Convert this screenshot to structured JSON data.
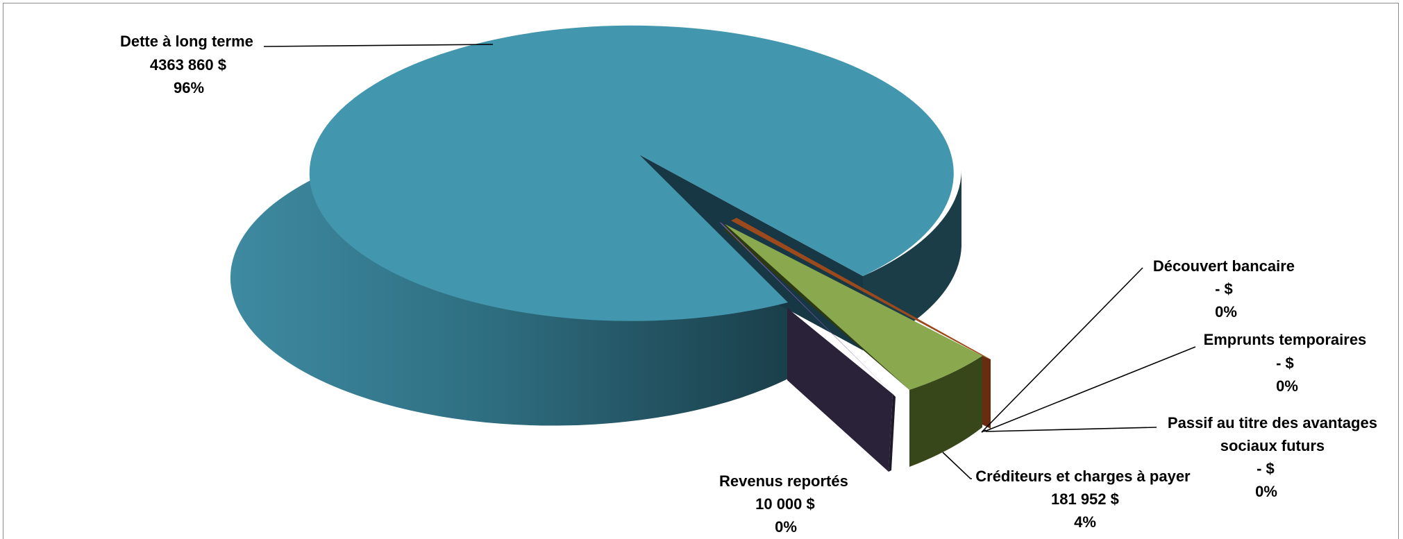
{
  "chart_data": {
    "type": "pie",
    "slices": [
      {
        "name": "Dette à long terme",
        "value": 4363860,
        "value_label": "4363 860  $",
        "percent_label": "96%",
        "color": "#4296ae"
      },
      {
        "name": "Découvert bancaire",
        "value": 0,
        "value_label": "-    $",
        "percent_label": "0%",
        "color": "#c0504d"
      },
      {
        "name": "Emprunts temporaires",
        "value": 0,
        "value_label": "-    $",
        "percent_label": "0%",
        "color": "#f79646"
      },
      {
        "name": "Passif au titre des avantages sociaux futurs",
        "name_lines": [
          "Passif au titre des avantages",
          "sociaux futurs"
        ],
        "value": 0,
        "value_label": "-    $",
        "percent_label": "0%",
        "color": "#9c4a1c"
      },
      {
        "name": "Créditeurs et charges à payer",
        "value": 181952,
        "value_label": "181 952  $",
        "percent_label": "4%",
        "color": "#8aa84d"
      },
      {
        "name": "Revenus reportés",
        "value": 10000,
        "value_label": "10 000  $",
        "percent_label": "0%",
        "color": "#7a5aa8"
      }
    ],
    "legend": "none"
  }
}
